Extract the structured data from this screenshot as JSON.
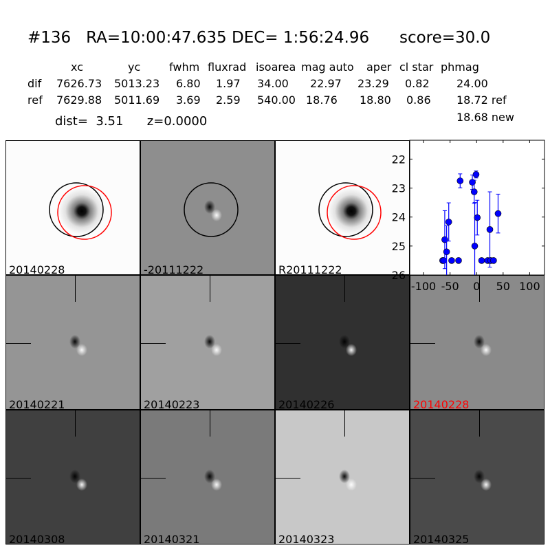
{
  "title": "#136   RA=10:00:47.635 DEC= 1:56:24.96      score=30.0",
  "table": {
    "columns": [
      "xc",
      "yc",
      "fwhm",
      "fluxrad",
      "isoarea",
      "mag auto",
      "aper",
      "cl star",
      "phmag"
    ],
    "rows": [
      {
        "label": "dif",
        "values": [
          "7626.73",
          "5013.23",
          "6.80",
          "1.97",
          "34.00",
          "22.97",
          "23.29",
          "0.82",
          "24.00"
        ]
      },
      {
        "label": "ref",
        "values": [
          "7629.88",
          "5011.69",
          "3.69",
          "2.59",
          "540.00",
          "18.76",
          "18.80",
          "0.86",
          "18.72 ref"
        ]
      }
    ],
    "extra_phmag": "18.68 new"
  },
  "dist_line": "dist=  3.51      z=0.0000",
  "panels": [
    {
      "label": "20140228",
      "bg": "#fcfcfc",
      "style": "star",
      "circles": [
        "black",
        "red"
      ]
    },
    {
      "label": "-20111222",
      "bg": "#8e8e8e",
      "style": "dipole",
      "circles": [
        "black"
      ]
    },
    {
      "label": "R20111222",
      "bg": "#fcfcfc",
      "style": "star",
      "circles": [
        "black",
        "red"
      ]
    },
    {
      "label": "20140221",
      "bg": "#959595",
      "style": "dipole"
    },
    {
      "label": "20140223",
      "bg": "#a0a0a0",
      "style": "dipole"
    },
    {
      "label": "20140226",
      "bg": "#303030",
      "style": "dipole"
    },
    {
      "label": "20140228",
      "bg": "#8a8a8a",
      "style": "dipole",
      "label_color": "#ff0000"
    },
    {
      "label": "20140308",
      "bg": "#404040",
      "style": "dipole"
    },
    {
      "label": "20140321",
      "bg": "#7a7a7a",
      "style": "dipole"
    },
    {
      "label": "20140323",
      "bg": "#c8c8c8",
      "style": "dipole"
    },
    {
      "label": "20140325",
      "bg": "#4a4a4a",
      "style": "dipole"
    }
  ],
  "chart_data": {
    "type": "scatter",
    "xlim": [
      -126,
      128
    ],
    "ylim": [
      26,
      21.35
    ],
    "y_inverted": true,
    "xticks": [
      -100,
      -50,
      0,
      50,
      100
    ],
    "yticks": [
      22,
      23,
      24,
      25,
      26
    ],
    "color": "#0000ff",
    "points": [
      {
        "x": -64,
        "y": 25.5,
        "err": 0.05
      },
      {
        "x": -62,
        "y": 25.5,
        "err": 0.05
      },
      {
        "x": -60,
        "y": 24.78,
        "err": 1.0
      },
      {
        "x": -56.5,
        "y": 25.2,
        "err": 0.9
      },
      {
        "x": -52.5,
        "y": 24.17,
        "err": 0.66
      },
      {
        "x": -47,
        "y": 25.5,
        "err": 0.05
      },
      {
        "x": -34,
        "y": 25.5,
        "err": 0.05
      },
      {
        "x": -31,
        "y": 22.75,
        "err": 0.24
      },
      {
        "x": -8,
        "y": 22.8,
        "err": 0.25
      },
      {
        "x": -4.5,
        "y": 23.13,
        "err": 0.4
      },
      {
        "x": -1,
        "y": 22.53,
        "err": 0.12
      },
      {
        "x": -3.5,
        "y": 25.0,
        "err": 1.5
      },
      {
        "x": 1.3,
        "y": 24.02,
        "err": 0.6
      },
      {
        "x": 9.5,
        "y": 25.5,
        "err": 0.05
      },
      {
        "x": 21,
        "y": 25.5,
        "err": 0.05
      },
      {
        "x": 25,
        "y": 24.43,
        "err": 1.3
      },
      {
        "x": 26.5,
        "y": 25.5,
        "err": 0.05
      },
      {
        "x": 32,
        "y": 25.5,
        "err": 0.05
      },
      {
        "x": 40.5,
        "y": 23.88,
        "err": 0.67
      }
    ]
  }
}
